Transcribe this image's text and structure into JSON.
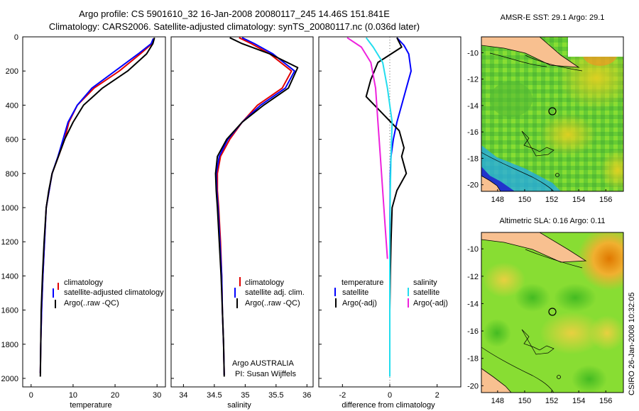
{
  "header": {
    "title_line1": "Argo profile: CS 5901610_32 16-Jan-2008 20080117_245 14.46S 151.841E",
    "title_line2": "Climatology: CARS2006. Satellite-adjusted climatology: synTS_20080117.nc (0.036d later)"
  },
  "colors": {
    "climatology": "#e00000",
    "satellite": "#0000ff",
    "argo": "#000000",
    "satellite_light": "#22ddee",
    "argo_adj": "#ee22dd",
    "land": "#f8c090"
  },
  "y_axis": {
    "ticks": [
      0,
      200,
      400,
      600,
      800,
      1000,
      1200,
      1400,
      1600,
      1800,
      2000
    ],
    "range": [
      0,
      2050
    ]
  },
  "chart_data": [
    {
      "type": "line",
      "xlabel": "temperature",
      "xlim": [
        -2,
        32
      ],
      "xticks": [
        0,
        10,
        20,
        30
      ],
      "ylabel": "",
      "ylim": [
        2050,
        0
      ],
      "legend": {
        "placement": "bottom-right",
        "entries": [
          "climatology",
          "satellite-adjusted climatology",
          "Argo(..raw -QC)"
        ]
      },
      "series": [
        {
          "name": "climatology",
          "color": "#e00000",
          "x": [
            29.2,
            28.8,
            26,
            21,
            15,
            11,
            9,
            8,
            6.5,
            5,
            4.3,
            3.6,
            3.2,
            2.8,
            2.5,
            2.3,
            2.2
          ],
          "y": [
            10,
            40,
            100,
            200,
            300,
            400,
            500,
            600,
            700,
            800,
            900,
            1000,
            1200,
            1400,
            1600,
            1800,
            1970
          ]
        },
        {
          "name": "satellite-adjusted climatology",
          "color": "#0000ff",
          "x": [
            29.1,
            28.6,
            25.5,
            20,
            14.5,
            11,
            8.8,
            7.6,
            6.4,
            5,
            4.3,
            3.6,
            3.2,
            2.8,
            2.5,
            2.3,
            2.2
          ],
          "y": [
            10,
            40,
            100,
            200,
            300,
            400,
            500,
            600,
            700,
            800,
            900,
            1000,
            1200,
            1400,
            1600,
            1800,
            1970
          ]
        },
        {
          "name": "Argo(..raw -QC)",
          "color": "#000000",
          "x": [
            29.4,
            29,
            27.5,
            23,
            17,
            12.5,
            10,
            8,
            6.5,
            5,
            4.2,
            3.6,
            3.1,
            2.7,
            2.4,
            2.3,
            2.2
          ],
          "y": [
            5,
            40,
            100,
            200,
            300,
            400,
            500,
            600,
            700,
            800,
            900,
            1000,
            1200,
            1400,
            1600,
            1800,
            1990
          ]
        }
      ]
    },
    {
      "type": "line",
      "xlabel": "salinity",
      "xlim": [
        33.8,
        36.1
      ],
      "xticks": [
        34,
        34.5,
        35,
        35.5,
        36
      ],
      "ylim": [
        2050,
        0
      ],
      "legend": {
        "placement": "bottom-right",
        "entries": [
          "climatology",
          "satellite adj. clim.",
          "Argo(..raw -QC)"
        ]
      },
      "series": [
        {
          "name": "climatology",
          "color": "#e00000",
          "x": [
            34.9,
            35.1,
            35.4,
            35.75,
            35.6,
            35.2,
            34.95,
            34.75,
            34.6,
            34.55,
            34.55,
            34.57,
            34.6,
            34.62,
            34.63,
            34.65,
            34.66
          ],
          "y": [
            5,
            40,
            100,
            200,
            300,
            400,
            500,
            600,
            700,
            800,
            900,
            1000,
            1200,
            1400,
            1600,
            1800,
            1980
          ]
        },
        {
          "name": "satellite adj. clim.",
          "color": "#0000ff",
          "x": [
            34.95,
            35.15,
            35.45,
            35.8,
            35.65,
            35.25,
            34.95,
            34.72,
            34.58,
            34.53,
            34.54,
            34.56,
            34.59,
            34.62,
            34.63,
            34.65,
            34.66
          ],
          "y": [
            5,
            40,
            100,
            200,
            300,
            400,
            500,
            600,
            700,
            800,
            900,
            1000,
            1200,
            1400,
            1600,
            1800,
            1980
          ]
        },
        {
          "name": "Argo(..raw -QC)",
          "color": "#000000",
          "x": [
            34.75,
            34.95,
            35.4,
            35.85,
            35.7,
            35.3,
            34.95,
            34.7,
            34.55,
            34.52,
            34.53,
            34.55,
            34.58,
            34.61,
            34.63,
            34.65,
            34.66
          ],
          "y": [
            5,
            40,
            100,
            180,
            300,
            400,
            500,
            600,
            700,
            800,
            900,
            1000,
            1200,
            1400,
            1600,
            1800,
            1990
          ]
        }
      ]
    },
    {
      "type": "line",
      "xlabel": "difference from climatology",
      "xlim": [
        -3,
        3
      ],
      "xticks": [
        -2,
        0,
        2
      ],
      "ylim": [
        2050,
        0
      ],
      "legend": {
        "placement": "bottom",
        "groups": [
          {
            "heading": "temperature",
            "entries": [
              "satellite",
              "Argo(-adj)"
            ]
          },
          {
            "heading": "salinity",
            "entries": [
              "satellite",
              "Argo(-adj)"
            ]
          }
        ]
      },
      "series": [
        {
          "name": "temperature satellite",
          "color": "#0000ff",
          "x": [
            0.3,
            0.6,
            0.8,
            0.9,
            0.7,
            0.5,
            0.3,
            0.15,
            0.05,
            0.02,
            0.01,
            0,
            0,
            0,
            0,
            0
          ],
          "y": [
            5,
            50,
            100,
            200,
            300,
            400,
            500,
            600,
            700,
            800,
            1000,
            1200,
            1400,
            1600,
            1800,
            1990
          ]
        },
        {
          "name": "temperature Argo(-adj)",
          "color": "#000000",
          "x": [
            0.3,
            0.5,
            -0.5,
            -0.8,
            -1,
            -0.3,
            0.4,
            0.6,
            0.5,
            0.7,
            0.3,
            0.1,
            0.05,
            0.02,
            0,
            0
          ],
          "y": [
            5,
            60,
            150,
            250,
            350,
            450,
            550,
            650,
            700,
            800,
            900,
            1000,
            1200,
            1400,
            1600,
            1990
          ]
        },
        {
          "name": "salinity satellite",
          "color": "#22ddee",
          "x": [
            -1,
            -0.7,
            -0.3,
            -0.1,
            0.1,
            0.05,
            0.02,
            0,
            0,
            0
          ],
          "y": [
            5,
            60,
            150,
            300,
            500,
            700,
            900,
            1200,
            1600,
            1990
          ]
        },
        {
          "name": "salinity Argo(-adj)",
          "color": "#ee22dd",
          "x": [
            -1.8,
            -1.2,
            -0.8,
            -0.6,
            -0.5,
            -0.4,
            -0.3,
            -0.2,
            -0.1
          ],
          "y": [
            5,
            60,
            150,
            300,
            500,
            700,
            900,
            1100,
            1300
          ]
        }
      ]
    }
  ],
  "maps": [
    {
      "title": "AMSR-E SST: 29.1 Argo: 29.1",
      "xticks": [
        148,
        150,
        152,
        154,
        156
      ],
      "yticks": [
        -10,
        -12,
        -14,
        -16,
        -18,
        -20
      ],
      "xlim": [
        146.8,
        157.3
      ],
      "ylim": [
        -20.5,
        -8.8
      ],
      "marker": {
        "lon": 151.841,
        "lat": -14.46
      }
    },
    {
      "title": "Altimetric SLA: 0.16 Argo: 0.11",
      "xticks": [
        148,
        150,
        152,
        154,
        156
      ],
      "yticks": [
        -10,
        -12,
        -14,
        -16,
        -18,
        -20
      ],
      "xlim": [
        146.8,
        157.3
      ],
      "ylim": [
        -20.5,
        -8.8
      ],
      "marker": {
        "lon": 151.841,
        "lat": -14.46
      }
    }
  ],
  "footer": {
    "institution_line1": "Argo AUSTRALIA",
    "institution_line2": "PI: Susan Wijffels",
    "stamp": "CSIRO 26-Jan-2008 10:32:05"
  }
}
